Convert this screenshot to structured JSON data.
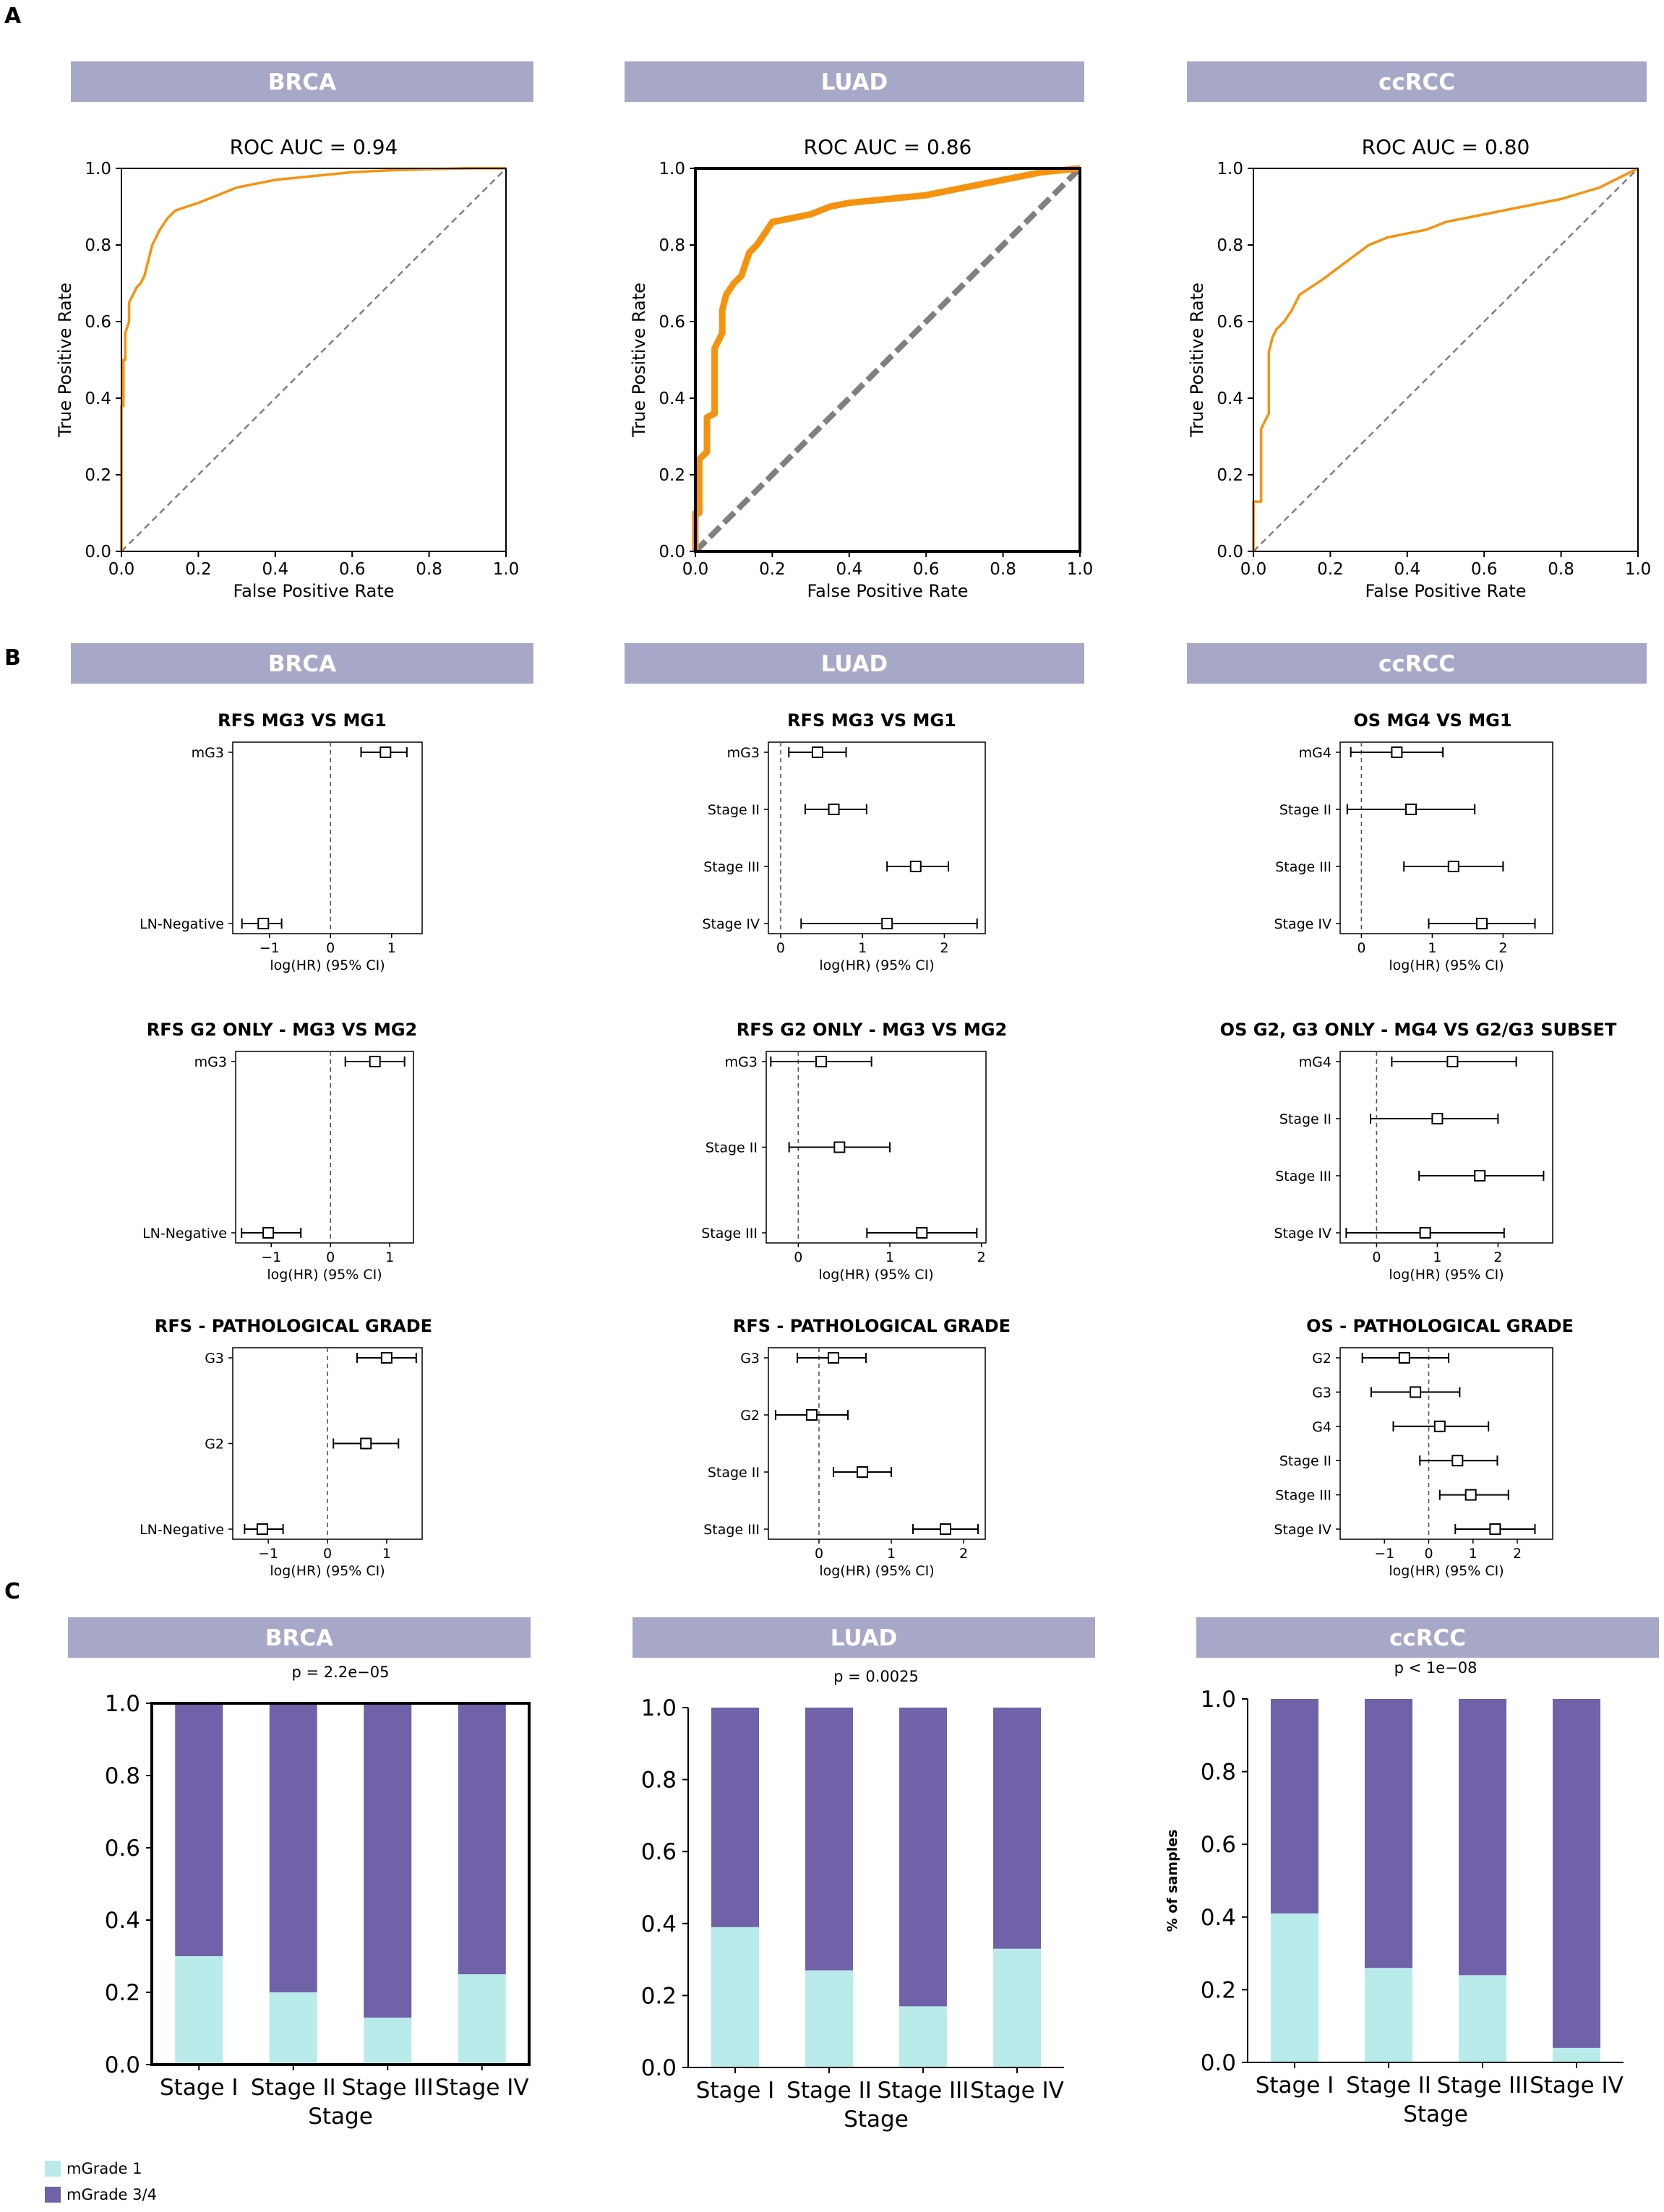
{
  "panel_letters": [
    "A",
    "B",
    "C"
  ],
  "headers": [
    "BRCA",
    "LUAD",
    "ccRCC"
  ],
  "colors": {
    "header_bg": "#a7a7c7",
    "roc_line": "#f5930f",
    "diag": "#808080",
    "cyan": "#b9ebeb",
    "purple": "#7061a8"
  },
  "legend": {
    "items": [
      {
        "label": "mGrade 1",
        "color": "#b9ebeb"
      },
      {
        "label": "mGrade 3/4",
        "color": "#7061a8"
      }
    ]
  },
  "chart_data": [
    {
      "id": "roc-brca",
      "type": "line",
      "title": "ROC AUC = 0.94",
      "xlabel": "False Positive Rate",
      "ylabel": "True Positive Rate",
      "xlim": [
        0,
        1
      ],
      "ylim": [
        0,
        1
      ],
      "xticks": [
        "0.0",
        "0.2",
        "0.4",
        "0.6",
        "0.8",
        "1.0"
      ],
      "yticks": [
        "0.0",
        "0.2",
        "0.4",
        "0.6",
        "0.8",
        "1.0"
      ],
      "x": [
        0,
        0,
        0.005,
        0.005,
        0.01,
        0.01,
        0.02,
        0.02,
        0.03,
        0.04,
        0.05,
        0.06,
        0.07,
        0.08,
        0.1,
        0.12,
        0.14,
        0.17,
        0.2,
        0.25,
        0.3,
        0.35,
        0.4,
        0.5,
        0.6,
        0.7,
        0.8,
        0.9,
        1.0
      ],
      "y": [
        0,
        0.38,
        0.38,
        0.5,
        0.5,
        0.57,
        0.6,
        0.65,
        0.67,
        0.69,
        0.7,
        0.72,
        0.76,
        0.8,
        0.84,
        0.87,
        0.89,
        0.9,
        0.91,
        0.93,
        0.95,
        0.96,
        0.97,
        0.98,
        0.99,
        0.995,
        0.998,
        1.0,
        1.0
      ]
    },
    {
      "id": "roc-luad",
      "type": "line",
      "title": "ROC AUC = 0.86",
      "xlabel": "False Positive Rate",
      "ylabel": "True Positive Rate",
      "xlim": [
        0,
        1
      ],
      "ylim": [
        0,
        1
      ],
      "xticks": [
        "0.0",
        "0.2",
        "0.4",
        "0.6",
        "0.8",
        "1.0"
      ],
      "yticks": [
        "0.0",
        "0.2",
        "0.4",
        "0.6",
        "0.8",
        "1.0"
      ],
      "x": [
        0,
        0,
        0.01,
        0.01,
        0.03,
        0.03,
        0.05,
        0.05,
        0.07,
        0.07,
        0.08,
        0.1,
        0.12,
        0.14,
        0.16,
        0.18,
        0.2,
        0.25,
        0.3,
        0.35,
        0.4,
        0.5,
        0.6,
        0.7,
        0.8,
        0.9,
        1.0
      ],
      "y": [
        0,
        0.1,
        0.1,
        0.24,
        0.26,
        0.35,
        0.36,
        0.53,
        0.57,
        0.63,
        0.67,
        0.7,
        0.72,
        0.78,
        0.8,
        0.83,
        0.86,
        0.87,
        0.88,
        0.9,
        0.91,
        0.92,
        0.93,
        0.95,
        0.97,
        0.99,
        1.0
      ]
    },
    {
      "id": "roc-ccrcc",
      "type": "line",
      "title": "ROC AUC = 0.80",
      "xlabel": "False Positive Rate",
      "ylabel": "True Positive Rate",
      "xlim": [
        0,
        1
      ],
      "ylim": [
        0,
        1
      ],
      "xticks": [
        "0.0",
        "0.2",
        "0.4",
        "0.6",
        "0.8",
        "1.0"
      ],
      "yticks": [
        "0.0",
        "0.2",
        "0.4",
        "0.6",
        "0.8",
        "1.0"
      ],
      "x": [
        0,
        0,
        0.02,
        0.02,
        0.04,
        0.04,
        0.05,
        0.06,
        0.08,
        0.1,
        0.12,
        0.15,
        0.18,
        0.22,
        0.26,
        0.3,
        0.35,
        0.4,
        0.45,
        0.5,
        0.6,
        0.7,
        0.8,
        0.9,
        1.0
      ],
      "y": [
        0,
        0.13,
        0.13,
        0.32,
        0.36,
        0.52,
        0.56,
        0.58,
        0.6,
        0.63,
        0.67,
        0.69,
        0.71,
        0.74,
        0.77,
        0.8,
        0.82,
        0.83,
        0.84,
        0.86,
        0.88,
        0.9,
        0.92,
        0.95,
        1.0
      ]
    },
    {
      "id": "fp-brca-1",
      "type": "forest",
      "title": "RFS  MG3 VS MG1",
      "xlabel": "log(HR) (95% CI)",
      "xlim": [
        -1.6,
        1.5
      ],
      "xticks": [
        -1,
        0,
        1
      ],
      "labels": [
        "mG3",
        "LN-Negative"
      ],
      "est": [
        0.9,
        -1.1
      ],
      "lo": [
        0.5,
        -1.45
      ],
      "hi": [
        1.25,
        -0.8
      ]
    },
    {
      "id": "fp-luad-1",
      "type": "forest",
      "title": "RFS MG3 VS MG1",
      "xlabel": "log(HR) (95% CI)",
      "xlim": [
        -0.15,
        2.5
      ],
      "xticks": [
        0,
        1,
        2
      ],
      "labels": [
        "mG3",
        "Stage II",
        "Stage III",
        "Stage IV"
      ],
      "est": [
        0.45,
        0.65,
        1.65,
        1.3
      ],
      "lo": [
        0.1,
        0.3,
        1.3,
        0.25
      ],
      "hi": [
        0.8,
        1.05,
        2.05,
        2.4
      ]
    },
    {
      "id": "fp-ccrcc-1",
      "type": "forest",
      "title": "OS  MG4 VS MG1",
      "xlabel": "log(HR) (95% CI)",
      "xlim": [
        -0.3,
        2.7
      ],
      "xticks": [
        0,
        1,
        2
      ],
      "labels": [
        "mG4",
        "Stage II",
        "Stage III",
        "Stage IV"
      ],
      "est": [
        0.5,
        0.7,
        1.3,
        1.7
      ],
      "lo": [
        -0.15,
        -0.2,
        0.6,
        0.95
      ],
      "hi": [
        1.15,
        1.6,
        2.0,
        2.45
      ]
    },
    {
      "id": "fp-brca-2",
      "type": "forest",
      "title": "RFS  G2 ONLY - MG3 VS MG2",
      "xlabel": "log(HR) (95% CI)",
      "xlim": [
        -1.6,
        1.4
      ],
      "xticks": [
        -1,
        0,
        1
      ],
      "labels": [
        "mG3",
        "LN-Negative"
      ],
      "est": [
        0.75,
        -1.05
      ],
      "lo": [
        0.25,
        -1.5
      ],
      "hi": [
        1.25,
        -0.5
      ]
    },
    {
      "id": "fp-luad-2",
      "type": "forest",
      "title": "RFS  G2 ONLY - MG3 VS MG2",
      "xlabel": "log(HR) (95% CI)",
      "xlim": [
        -0.35,
        2.05
      ],
      "xticks": [
        0,
        1,
        2
      ],
      "labels": [
        "mG3",
        "Stage II",
        "Stage III"
      ],
      "est": [
        0.25,
        0.45,
        1.35
      ],
      "lo": [
        -0.3,
        -0.1,
        0.75
      ],
      "hi": [
        0.8,
        1.0,
        1.95
      ]
    },
    {
      "id": "fp-ccrcc-2",
      "type": "forest",
      "title": "OS G2, G3 ONLY - MG4 VS G2/G3 SUBSET",
      "xlabel": "log(HR) (95% CI)",
      "xlim": [
        -0.6,
        2.9
      ],
      "xticks": [
        0,
        1,
        2
      ],
      "labels": [
        "mG4",
        "Stage II",
        "Stage III",
        "Stage IV"
      ],
      "est": [
        1.25,
        1.0,
        1.7,
        0.8
      ],
      "lo": [
        0.25,
        -0.1,
        0.7,
        -0.5
      ],
      "hi": [
        2.3,
        2.0,
        2.75,
        2.1
      ]
    },
    {
      "id": "fp-brca-3",
      "type": "forest",
      "title": "RFS - PATHOLOGICAL GRADE",
      "xlabel": "log(HR) (95% CI)",
      "xlim": [
        -1.6,
        1.6
      ],
      "xticks": [
        -1,
        0,
        1
      ],
      "labels": [
        "G3",
        "G2",
        "LN-Negative"
      ],
      "est": [
        1.0,
        0.65,
        -1.1
      ],
      "lo": [
        0.5,
        0.1,
        -1.4
      ],
      "hi": [
        1.5,
        1.2,
        -0.75
      ]
    },
    {
      "id": "fp-luad-3",
      "type": "forest",
      "title": "RFS - PATHOLOGICAL GRADE",
      "xlabel": "log(HR) (95% CI)",
      "xlim": [
        -0.7,
        2.3
      ],
      "xticks": [
        0,
        1,
        2
      ],
      "labels": [
        "G3",
        "G2",
        "Stage II",
        "Stage III"
      ],
      "est": [
        0.2,
        -0.1,
        0.6,
        1.75
      ],
      "lo": [
        -0.3,
        -0.6,
        0.2,
        1.3
      ],
      "hi": [
        0.65,
        0.4,
        1.0,
        2.2
      ]
    },
    {
      "id": "fp-ccrcc-3",
      "type": "forest",
      "title": "OS  - PATHOLOGICAL GRADE",
      "xlabel": "log(HR) (95% CI)",
      "xlim": [
        -2.0,
        2.8
      ],
      "xticks": [
        -1,
        0,
        1,
        2
      ],
      "labels": [
        "G2",
        "G3",
        "G4",
        "Stage II",
        "Stage III",
        "Stage IV"
      ],
      "est": [
        -0.55,
        -0.3,
        0.25,
        0.65,
        0.95,
        1.5
      ],
      "lo": [
        -1.5,
        -1.3,
        -0.8,
        -0.2,
        0.25,
        0.6
      ],
      "hi": [
        0.45,
        0.7,
        1.35,
        1.55,
        1.8,
        2.4
      ]
    },
    {
      "id": "bar-brca",
      "type": "bar",
      "title": "p = 2.2e−05",
      "xlabel": "Stage",
      "ylabel": "",
      "ylim": [
        0,
        1
      ],
      "yticks": [
        "0.0",
        "0.2",
        "0.4",
        "0.6",
        "0.8",
        "1.0"
      ],
      "categories": [
        "Stage I",
        "Stage II",
        "Stage III",
        "Stage IV"
      ],
      "series": [
        {
          "name": "mGrade 1",
          "values": [
            0.3,
            0.2,
            0.13,
            0.25
          ]
        },
        {
          "name": "mGrade 3/4",
          "values": [
            0.7,
            0.8,
            0.87,
            0.75
          ]
        }
      ]
    },
    {
      "id": "bar-luad",
      "type": "bar",
      "title": "p = 0.0025",
      "xlabel": "Stage",
      "ylabel": "",
      "ylim": [
        0,
        1
      ],
      "yticks": [
        "0.0",
        "0.2",
        "0.4",
        "0.6",
        "0.8",
        "1.0"
      ],
      "categories": [
        "Stage I",
        "Stage II",
        "Stage III",
        "Stage IV"
      ],
      "series": [
        {
          "name": "mGrade 1",
          "values": [
            0.39,
            0.27,
            0.17,
            0.33
          ]
        },
        {
          "name": "mGrade 3/4",
          "values": [
            0.61,
            0.73,
            0.83,
            0.67
          ]
        }
      ]
    },
    {
      "id": "bar-ccrcc",
      "type": "bar",
      "title": "p < 1e−08",
      "xlabel": "Stage",
      "ylabel": "% of samples",
      "ylim": [
        0,
        1
      ],
      "yticks": [
        "0.0",
        "0.2",
        "0.4",
        "0.6",
        "0.8",
        "1.0"
      ],
      "categories": [
        "Stage I",
        "Stage II",
        "Stage III",
        "Stage IV"
      ],
      "series": [
        {
          "name": "mGrade 1",
          "values": [
            0.41,
            0.26,
            0.24,
            0.04
          ]
        },
        {
          "name": "mGrade 3/4",
          "values": [
            0.59,
            0.74,
            0.76,
            0.96
          ]
        }
      ]
    }
  ]
}
